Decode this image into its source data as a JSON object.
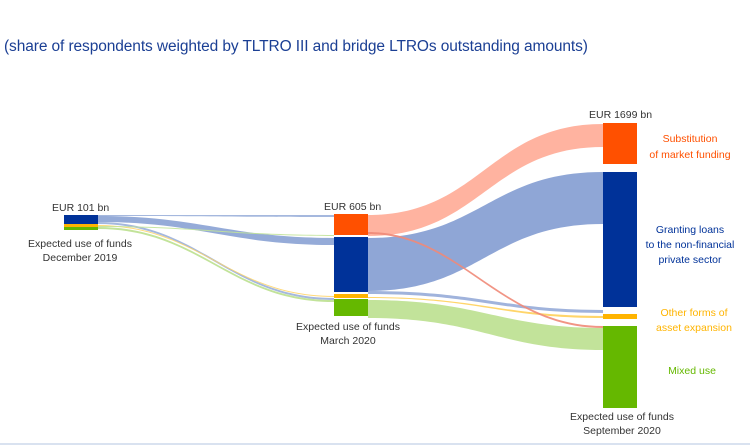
{
  "subtitle": "(share of respondents weighted by TLTRO III and bridge LTROs outstanding amounts)",
  "stages": [
    {
      "amount_label": "EUR 101 bn",
      "caption_line1": "Expected use of funds",
      "caption_line2": "December 2019"
    },
    {
      "amount_label": "EUR 605 bn",
      "caption_line1": "Expected use of funds",
      "caption_line2": "March 2020"
    },
    {
      "amount_label": "EUR 1699 bn",
      "caption_line1": "Expected use of funds",
      "caption_line2": "September 2020"
    }
  ],
  "categories": [
    {
      "line1": "Substitution",
      "line2": "of market funding",
      "line3": "",
      "color": "#ff5000"
    },
    {
      "line1": "Granting loans",
      "line2": "to the non-financial",
      "line3": "private sector",
      "color": "#003299"
    },
    {
      "line1": "Other forms of",
      "line2": "asset expansion",
      "line3": "",
      "color": "#ffb400"
    },
    {
      "line1": "Mixed use",
      "line2": "",
      "line3": "",
      "color": "#65b800"
    }
  ],
  "colors": {
    "title": "#1b3f94",
    "substitution_flow": "#ffb3a0",
    "loans_flow": "#8fa6d6",
    "other_flow": "#ffe08a",
    "mixed_flow": "#c2e39a"
  }
}
